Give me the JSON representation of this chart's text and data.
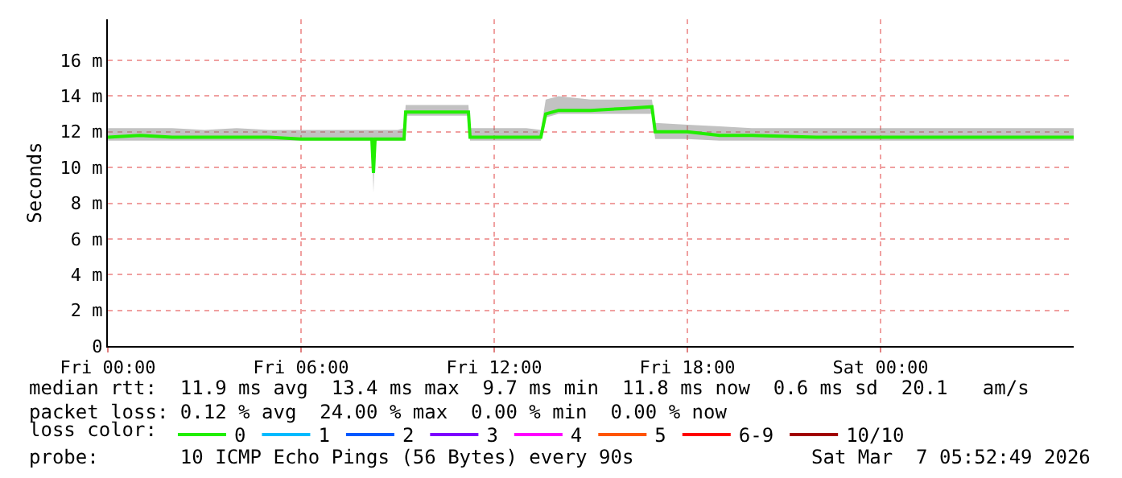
{
  "chart_data": {
    "type": "line",
    "ylabel": "Seconds",
    "legend_title": "loss color:",
    "legend": "bottom",
    "grid": true,
    "line_style": "solid",
    "marker": "none",
    "x": [
      "2026-03-06T00:00",
      "2026-03-06T01:00",
      "2026-03-06T02:00",
      "2026-03-06T03:00",
      "2026-03-06T04:00",
      "2026-03-06T05:00",
      "2026-03-06T06:00",
      "2026-03-06T07:00",
      "2026-03-06T08:00",
      "2026-03-06T08:12",
      "2026-03-06T08:15",
      "2026-03-06T08:18",
      "2026-03-06T09:00",
      "2026-03-06T09:12",
      "2026-03-06T09:15",
      "2026-03-06T10:00",
      "2026-03-06T11:00",
      "2026-03-06T11:12",
      "2026-03-06T11:15",
      "2026-03-06T12:00",
      "2026-03-06T13:00",
      "2026-03-06T13:27",
      "2026-03-06T13:36",
      "2026-03-06T14:00",
      "2026-03-06T15:00",
      "2026-03-06T16:00",
      "2026-03-06T16:54",
      "2026-03-06T17:00",
      "2026-03-06T18:00",
      "2026-03-06T19:00",
      "2026-03-06T20:00",
      "2026-03-06T22:00",
      "2026-03-07T00:00",
      "2026-03-07T02:00",
      "2026-03-07T04:00",
      "2026-03-07T06:00"
    ],
    "xlim": [
      "2026-03-06T00:00",
      "2026-03-07T06:00"
    ],
    "xticks": [
      {
        "value": "2026-03-06T00:00",
        "label": "Fri 00:00"
      },
      {
        "value": "2026-03-06T06:00",
        "label": "Fri 06:00"
      },
      {
        "value": "2026-03-06T12:00",
        "label": "Fri 12:00"
      },
      {
        "value": "2026-03-06T18:00",
        "label": "Fri 18:00"
      },
      {
        "value": "2026-03-07T00:00",
        "label": "Sat 00:00"
      }
    ],
    "ylim": [
      0,
      18.3
    ],
    "yticks": [
      0,
      {
        "value": 2,
        "label": "2 m"
      },
      {
        "value": 4,
        "label": "4 m"
      },
      {
        "value": 6,
        "label": "6 m"
      },
      {
        "value": 8,
        "label": "8 m"
      },
      {
        "value": 10,
        "label": "10 m"
      },
      {
        "value": 12,
        "label": "12 m"
      },
      {
        "value": 14,
        "label": "14 m"
      },
      {
        "value": 16,
        "label": "16 m"
      }
    ],
    "series": [
      {
        "name": "0",
        "color": "#22ee00",
        "values": [
          11.7,
          11.8,
          11.7,
          11.7,
          11.7,
          11.7,
          11.6,
          11.6,
          11.6,
          11.6,
          9.7,
          11.6,
          11.6,
          11.6,
          13.1,
          13.1,
          13.1,
          13.1,
          11.7,
          11.7,
          11.7,
          11.7,
          13.0,
          13.2,
          13.2,
          13.3,
          13.4,
          12.0,
          12.0,
          11.8,
          11.8,
          11.7,
          11.7,
          11.7,
          11.7,
          11.7
        ],
        "lower": [
          11.5,
          11.5,
          11.5,
          11.5,
          11.5,
          11.5,
          11.5,
          11.5,
          11.5,
          11.5,
          8.6,
          11.5,
          11.5,
          11.5,
          12.9,
          12.9,
          12.9,
          12.9,
          11.5,
          11.5,
          11.5,
          11.5,
          12.8,
          13.0,
          13.0,
          13.0,
          13.0,
          11.6,
          11.6,
          11.5,
          11.5,
          11.5,
          11.5,
          11.5,
          11.5,
          11.5
        ],
        "upper": [
          12.2,
          12.2,
          12.2,
          12.1,
          12.2,
          12.1,
          12.1,
          12.1,
          12.1,
          12.1,
          12.1,
          12.1,
          12.1,
          12.2,
          13.5,
          13.5,
          13.5,
          13.5,
          12.2,
          12.2,
          12.2,
          12.1,
          13.8,
          14.0,
          13.8,
          13.8,
          13.8,
          12.5,
          12.4,
          12.3,
          12.2,
          12.2,
          12.2,
          12.2,
          12.2,
          12.2
        ]
      },
      {
        "name": "1",
        "color": "#00bbff",
        "values": [
          null,
          null,
          null,
          null,
          null,
          null,
          null,
          null,
          null,
          null,
          null,
          null,
          null,
          null,
          null,
          null,
          null,
          null,
          null,
          null,
          null,
          null,
          null,
          null,
          null,
          null,
          null,
          null,
          null,
          null,
          null,
          null,
          null,
          null,
          null,
          null
        ]
      },
      {
        "name": "2",
        "color": "#0059ff",
        "values": [
          null,
          null,
          null,
          null,
          null,
          null,
          null,
          null,
          null,
          null,
          null,
          null,
          null,
          null,
          null,
          null,
          null,
          null,
          null,
          null,
          null,
          null,
          null,
          null,
          null,
          null,
          null,
          null,
          null,
          null,
          null,
          null,
          null,
          null,
          null,
          null
        ]
      },
      {
        "name": "3",
        "color": "#7e00ff",
        "values": [
          null,
          null,
          null,
          null,
          null,
          null,
          null,
          null,
          null,
          null,
          null,
          null,
          null,
          null,
          null,
          null,
          null,
          null,
          null,
          null,
          null,
          null,
          null,
          null,
          null,
          null,
          null,
          null,
          null,
          null,
          null,
          null,
          null,
          null,
          null,
          null
        ]
      },
      {
        "name": "4",
        "color": "#ff00ff",
        "values": [
          null,
          null,
          null,
          null,
          null,
          null,
          null,
          null,
          null,
          null,
          null,
          null,
          null,
          null,
          null,
          null,
          null,
          null,
          null,
          null,
          null,
          null,
          null,
          null,
          null,
          null,
          null,
          null,
          null,
          null,
          null,
          null,
          null,
          null,
          null,
          null
        ]
      },
      {
        "name": "5",
        "color": "#ff5500",
        "values": [
          null,
          null,
          null,
          null,
          null,
          null,
          null,
          null,
          null,
          null,
          null,
          null,
          null,
          null,
          null,
          null,
          null,
          null,
          null,
          null,
          null,
          null,
          null,
          null,
          null,
          null,
          null,
          null,
          null,
          null,
          null,
          null,
          null,
          null,
          null,
          null
        ]
      },
      {
        "name": "6-9",
        "color": "#ff0000",
        "values": [
          null,
          null,
          null,
          null,
          null,
          null,
          null,
          null,
          null,
          null,
          null,
          null,
          null,
          null,
          null,
          null,
          null,
          null,
          null,
          null,
          null,
          null,
          null,
          null,
          null,
          null,
          null,
          null,
          null,
          null,
          null,
          null,
          null,
          null,
          null,
          null
        ]
      },
      {
        "name": "10/10",
        "color": "#a10000",
        "values": [
          null,
          null,
          null,
          null,
          null,
          null,
          null,
          null,
          null,
          null,
          null,
          null,
          null,
          null,
          null,
          null,
          null,
          null,
          null,
          null,
          null,
          null,
          null,
          null,
          null,
          null,
          null,
          null,
          null,
          null,
          null,
          null,
          null,
          null,
          null,
          null
        ]
      }
    ],
    "annotations": [
      "median rtt:  11.9 ms avg  13.4 ms max  9.7 ms min  11.8 ms now  0.6 ms sd  20.1   am/s",
      "packet loss: 0.12 % avg  24.00 % max  0.00 % min  0.00 % now",
      "probe:       10 ICMP Echo Pings (56 Bytes) every 90s",
      "Sat Mar  7 05:52:49 2026"
    ]
  }
}
